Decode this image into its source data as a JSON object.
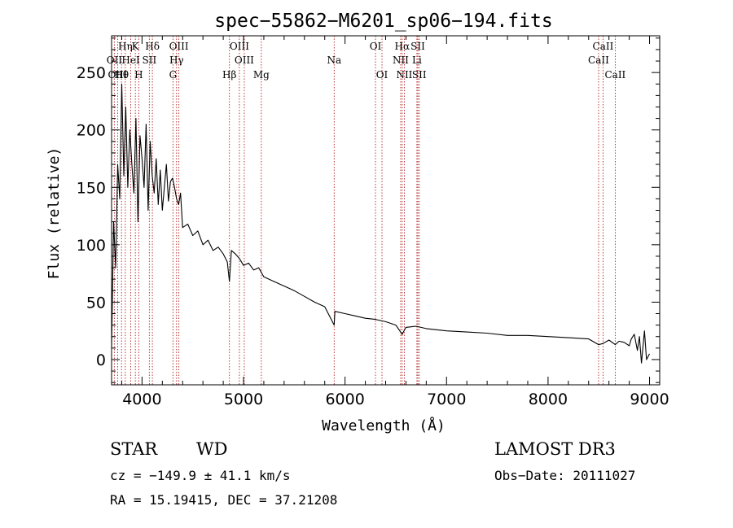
{
  "chart_data": {
    "type": "line",
    "title": "spec−55862−M6201_sp06−194.fits",
    "xlabel": "Wavelength (Å)",
    "ylabel": "Flux (relative)",
    "xlim": [
      3700,
      9100
    ],
    "ylim": [
      -22,
      282
    ],
    "xticks": [
      4000,
      5000,
      6000,
      7000,
      8000,
      9000
    ],
    "yticks": [
      0,
      50,
      100,
      150,
      200,
      250
    ],
    "grid": false,
    "series": [
      {
        "name": "flux",
        "x": [
          3700,
          3720,
          3740,
          3760,
          3780,
          3800,
          3820,
          3840,
          3860,
          3880,
          3900,
          3920,
          3940,
          3960,
          3980,
          4000,
          4020,
          4040,
          4060,
          4080,
          4100,
          4120,
          4140,
          4160,
          4180,
          4200,
          4220,
          4240,
          4260,
          4280,
          4300,
          4320,
          4340,
          4360,
          4380,
          4400,
          4450,
          4500,
          4550,
          4600,
          4650,
          4700,
          4750,
          4800,
          4840,
          4861,
          4880,
          4920,
          4960,
          5000,
          5050,
          5100,
          5150,
          5200,
          5300,
          5400,
          5500,
          5600,
          5700,
          5800,
          5893,
          5900,
          6000,
          6100,
          6200,
          6300,
          6400,
          6500,
          6563,
          6600,
          6700,
          6800,
          6900,
          7000,
          7200,
          7400,
          7600,
          7800,
          8000,
          8200,
          8400,
          8498,
          8542,
          8600,
          8662,
          8700,
          8750,
          8800,
          8820,
          8850,
          8880,
          8900,
          8920,
          8950,
          8970,
          9000
        ],
        "y": [
          10,
          120,
          80,
          170,
          140,
          240,
          160,
          220,
          150,
          200,
          170,
          145,
          210,
          120,
          195,
          175,
          150,
          205,
          130,
          190,
          160,
          145,
          175,
          135,
          165,
          130,
          150,
          170,
          138,
          155,
          158,
          150,
          140,
          135,
          145,
          115,
          118,
          108,
          112,
          100,
          104,
          95,
          98,
          92,
          85,
          68,
          95,
          92,
          88,
          82,
          84,
          78,
          80,
          72,
          68,
          64,
          60,
          55,
          50,
          46,
          30,
          42,
          40,
          38,
          36,
          35,
          33,
          30,
          22,
          28,
          29,
          27,
          26,
          25,
          24,
          23,
          21,
          21,
          20,
          19,
          18,
          13,
          14,
          17,
          13,
          16,
          15,
          12,
          18,
          22,
          8,
          20,
          -3,
          25,
          0,
          5
        ]
      }
    ],
    "spectral_lines": [
      {
        "label": "Hη",
        "wavelength": 3835
      },
      {
        "label": "K",
        "wavelength": 3934
      },
      {
        "label": "Hδ",
        "wavelength": 4102
      },
      {
        "label": "OIII",
        "wavelength": 4363
      },
      {
        "label": "OIII",
        "wavelength": 4959
      },
      {
        "label": "OI",
        "wavelength": 6300
      },
      {
        "label": "Hα",
        "wavelength": 6563
      },
      {
        "label": "SII",
        "wavelength": 6717
      },
      {
        "label": "CaII",
        "wavelength": 8542
      },
      {
        "label": "OII",
        "wavelength": 3727
      },
      {
        "label": "HeI",
        "wavelength": 3889
      },
      {
        "label": "SII",
        "wavelength": 4072
      },
      {
        "label": "Hγ",
        "wavelength": 4340
      },
      {
        "label": "OIII",
        "wavelength": 5007
      },
      {
        "label": "Na",
        "wavelength": 5893
      },
      {
        "label": "NII",
        "wavelength": 6548
      },
      {
        "label": "Li",
        "wavelength": 6708
      },
      {
        "label": "CaII",
        "wavelength": 8498
      },
      {
        "label": "OIII",
        "wavelength": 3760
      },
      {
        "label": "Hθ",
        "wavelength": 3798
      },
      {
        "label": "H",
        "wavelength": 3968
      },
      {
        "label": "G",
        "wavelength": 4305
      },
      {
        "label": "Hβ",
        "wavelength": 4861
      },
      {
        "label": "Mg",
        "wavelength": 5175
      },
      {
        "label": "OI",
        "wavelength": 6364
      },
      {
        "label": "NII",
        "wavelength": 6584
      },
      {
        "label": "SII",
        "wavelength": 6731
      },
      {
        "label": "CaII",
        "wavelength": 8662
      }
    ]
  },
  "info": {
    "object_class": "STAR",
    "subclass": "WD",
    "survey": "LAMOST DR3",
    "cz": "cz = −149.9 ± 41.1 km/s",
    "obs_date": "Obs−Date: 20111027",
    "coords": "RA =  15.19415, DEC =  37.21208"
  },
  "colors": {
    "spectrum": "#000000",
    "line_marker": "#b22222",
    "frame": "#000000"
  }
}
